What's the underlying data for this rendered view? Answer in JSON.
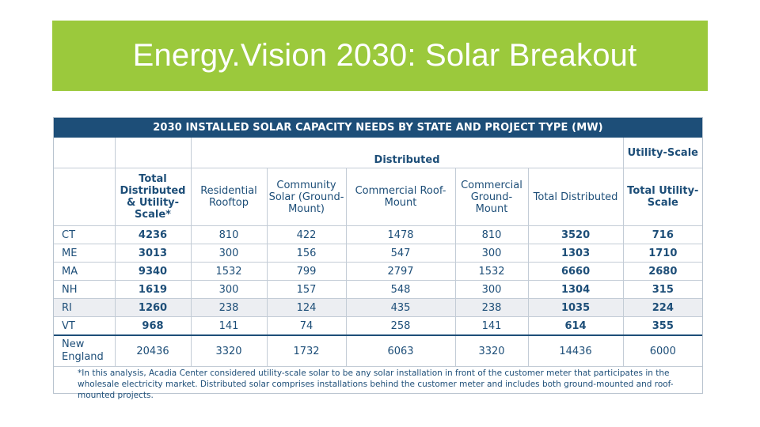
{
  "slide": {
    "title": "Energy.Vision 2030: Solar Breakout",
    "accent_color": "#9bc93c"
  },
  "table": {
    "header_color": "#1d4e78",
    "title": "2030 INSTALLED SOLAR CAPACITY NEEDS BY STATE AND PROJECT TYPE (MW)",
    "group_distributed": "Distributed",
    "group_utility_scale": "Utility-Scale",
    "columns": {
      "total_dist_util": "Total Distributed & Utility-Scale*",
      "residential": "Residential Rooftop",
      "community": "Community Solar (Ground-Mount)",
      "commercial_roof": "Commercial Roof-Mount",
      "commercial_ground": "Commercial Ground-Mount",
      "total_distributed": "Total Distributed",
      "total_utility": "Total Utility-Scale"
    },
    "rows": [
      {
        "state": "CT",
        "total": "4236",
        "residential": "810",
        "community": "422",
        "comm_roof": "1478",
        "comm_ground": "810",
        "total_dist": "3520",
        "total_util": "716"
      },
      {
        "state": "ME",
        "total": "3013",
        "residential": "300",
        "community": "156",
        "comm_roof": "547",
        "comm_ground": "300",
        "total_dist": "1303",
        "total_util": "1710"
      },
      {
        "state": "MA",
        "total": "9340",
        "residential": "1532",
        "community": "799",
        "comm_roof": "2797",
        "comm_ground": "1532",
        "total_dist": "6660",
        "total_util": "2680"
      },
      {
        "state": "NH",
        "total": "1619",
        "residential": "300",
        "community": "157",
        "comm_roof": "548",
        "comm_ground": "300",
        "total_dist": "1304",
        "total_util": "315"
      },
      {
        "state": "RI",
        "total": "1260",
        "residential": "238",
        "community": "124",
        "comm_roof": "435",
        "comm_ground": "238",
        "total_dist": "1035",
        "total_util": "224"
      },
      {
        "state": "VT",
        "total": "968",
        "residential": "141",
        "community": "74",
        "comm_roof": "258",
        "comm_ground": "141",
        "total_dist": "614",
        "total_util": "355"
      },
      {
        "state": "New England",
        "total": "20436",
        "residential": "3320",
        "community": "1732",
        "comm_roof": "6063",
        "comm_ground": "3320",
        "total_dist": "14436",
        "total_util": "6000"
      }
    ],
    "footnote": "*In this analysis, Acadia Center considered utility-scale solar to be any solar installation in front of the customer meter that participates in the wholesale electricity market. Distributed solar comprises installations behind the customer meter and includes both ground-mounted and roof-mounted projects."
  }
}
